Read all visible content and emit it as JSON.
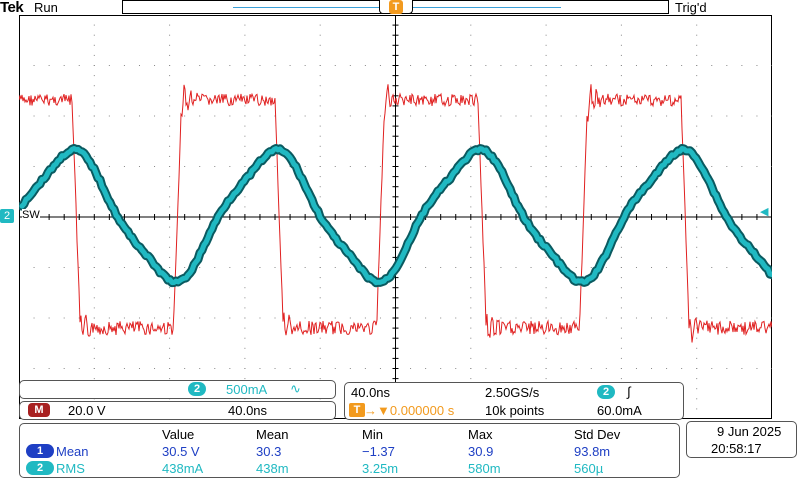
{
  "header": {
    "brand": "Tek",
    "run_state": "Run",
    "trigger_state": "Trig'd",
    "trigger_marker": "T"
  },
  "channel_marker": {
    "ch2": "2",
    "label": "SW"
  },
  "ch2_panel": {
    "badge": "2",
    "scale": "500mA",
    "coupling_icon": "∿"
  },
  "math_panel": {
    "badge": "M",
    "scale": "20.0 V",
    "timebase": "40.0ns"
  },
  "timebase_panel": {
    "horizontal_scale": "40.0ns",
    "sample_rate": "2.50GS/s",
    "trigger_source_badge": "2",
    "trigger_slope_icon": "∫",
    "trigger_position_icon": "T",
    "trigger_position": "→▼0.000000 s",
    "record_length": "10k points",
    "trigger_level": "60.0mA"
  },
  "measurements": {
    "headers": [
      "Value",
      "Mean",
      "Min",
      "Max",
      "Std Dev"
    ],
    "rows": [
      {
        "badge": "1",
        "name": "Mean",
        "value": "30.5 V",
        "mean": "30.3",
        "min": "−1.37",
        "max": "30.9",
        "std": "93.8m"
      },
      {
        "badge": "2",
        "name": "RMS",
        "value": "438mA",
        "mean": "438m",
        "min": "3.25m",
        "max": "580m",
        "std": "560µ"
      }
    ]
  },
  "datetime": {
    "date": "9 Jun  2025",
    "time": "20:58:17"
  },
  "colors": {
    "ch1_math": "#e02020",
    "ch2": "#20b9c2",
    "trigger": "#f29a1e",
    "meas1": "#1e3fc4"
  }
}
